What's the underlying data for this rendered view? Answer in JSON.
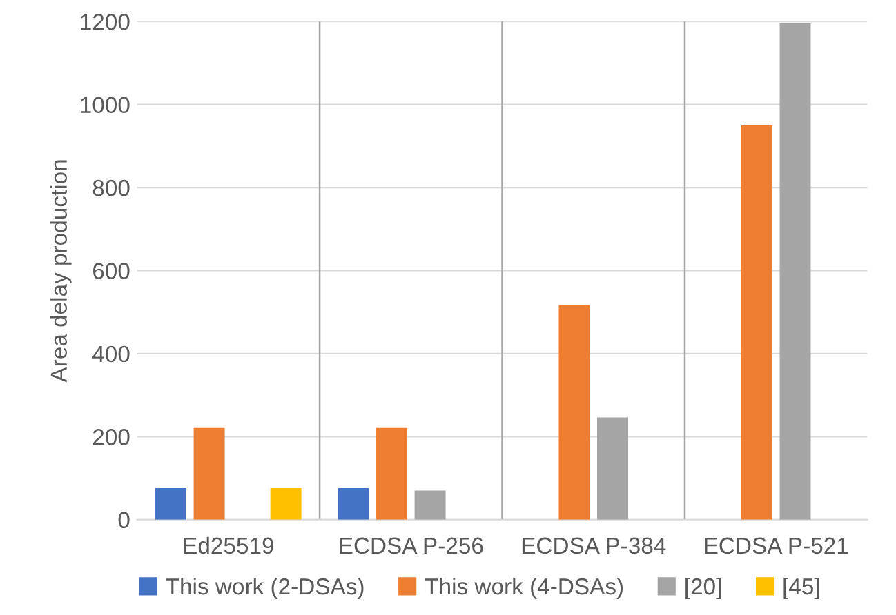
{
  "chart_data": {
    "type": "bar",
    "ylabel": "Area delay production",
    "categories": [
      "Ed25519",
      "ECDSA P-256",
      "ECDSA P-384",
      "ECDSA P-521"
    ],
    "series": [
      {
        "name": "This work (2-DSAs)",
        "color": "#4472c4",
        "values": [
          76,
          76,
          null,
          null
        ]
      },
      {
        "name": "This work (4-DSAs)",
        "color": "#ed7d31",
        "values": [
          221,
          221,
          517,
          950
        ]
      },
      {
        "name": "[20]",
        "color": "#a5a5a5",
        "values": [
          null,
          70,
          246,
          1196
        ]
      },
      {
        "name": "[45]",
        "color": "#ffc000",
        "values": [
          76,
          null,
          null,
          null
        ]
      }
    ],
    "ylim": [
      0,
      1200
    ],
    "yticks": [
      0,
      200,
      400,
      600,
      800,
      1000,
      1200
    ],
    "grid": true,
    "legend": "bottom"
  }
}
